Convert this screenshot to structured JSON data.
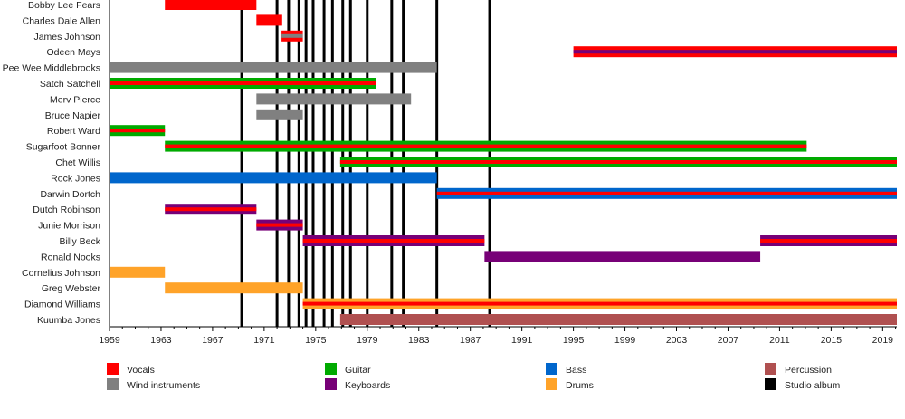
{
  "chart_data": {
    "type": "bar",
    "subtype": "timeline",
    "xlim": [
      1959,
      2020.1
    ],
    "x_tick_labels": [
      "1959",
      "1963",
      "1967",
      "1971",
      "1975",
      "1979",
      "1983",
      "1987",
      "1991",
      "1995",
      "1999",
      "2003",
      "2007",
      "2011",
      "2015",
      "2019"
    ],
    "colors": {
      "Vocals": "#ff0000",
      "Wind instruments": "#808080",
      "Guitar": "#00aa00",
      "Keyboards": "#770077",
      "Bass": "#0066cc",
      "Drums": "#ffa329",
      "Percussion": "#b05050",
      "Studio album": "#000000"
    },
    "legend": [
      "Vocals",
      "Wind instruments",
      "Guitar",
      "Keyboards",
      "Bass",
      "Drums",
      "Percussion",
      "Studio album"
    ],
    "legend_placement": "bottom",
    "members": [
      {
        "name": "Bobby Lee Fears",
        "spans": [
          {
            "start": 1963.3,
            "end": 1970.4,
            "role": "Vocals"
          }
        ]
      },
      {
        "name": "Charles Dale Allen",
        "spans": [
          {
            "start": 1970.4,
            "end": 1972.4,
            "role": "Vocals"
          }
        ]
      },
      {
        "name": "James Johnson",
        "spans": [
          {
            "start": 1972.35,
            "end": 1974.0,
            "role": "Vocals",
            "secondary": "Wind instruments"
          }
        ]
      },
      {
        "name": "Odeen Mays",
        "spans": [
          {
            "start": 1995.0,
            "end": 2020.1,
            "role": "Vocals",
            "secondary": "Keyboards"
          }
        ]
      },
      {
        "name": "Pee Wee Middlebrooks",
        "spans": [
          {
            "start": 1959.0,
            "end": 1984.4,
            "role": "Wind instruments"
          }
        ]
      },
      {
        "name": "Satch Satchell",
        "spans": [
          {
            "start": 1959.0,
            "end": 1979.7,
            "role": "Guitar",
            "secondary": "Vocals"
          }
        ]
      },
      {
        "name": "Merv Pierce",
        "spans": [
          {
            "start": 1970.4,
            "end": 1982.4,
            "role": "Wind instruments"
          }
        ]
      },
      {
        "name": "Bruce Napier",
        "spans": [
          {
            "start": 1970.4,
            "end": 1974.0,
            "role": "Wind instruments"
          }
        ]
      },
      {
        "name": "Robert Ward",
        "spans": [
          {
            "start": 1959.0,
            "end": 1963.3,
            "role": "Guitar",
            "secondary": "Vocals"
          }
        ]
      },
      {
        "name": "Sugarfoot Bonner",
        "spans": [
          {
            "start": 1963.3,
            "end": 2013.1,
            "role": "Guitar",
            "secondary": "Vocals"
          }
        ]
      },
      {
        "name": "Chet Willis",
        "spans": [
          {
            "start": 1976.9,
            "end": 2020.1,
            "role": "Guitar",
            "secondary": "Vocals"
          }
        ]
      },
      {
        "name": "Rock Jones",
        "spans": [
          {
            "start": 1959.0,
            "end": 1984.4,
            "role": "Bass"
          }
        ]
      },
      {
        "name": "Darwin Dortch",
        "spans": [
          {
            "start": 1984.4,
            "end": 2020.1,
            "role": "Bass",
            "secondary": "Vocals"
          }
        ]
      },
      {
        "name": "Dutch Robinson",
        "spans": [
          {
            "start": 1963.3,
            "end": 1970.4,
            "role": "Keyboards",
            "secondary": "Vocals"
          }
        ]
      },
      {
        "name": "Junie Morrison",
        "spans": [
          {
            "start": 1970.4,
            "end": 1974.0,
            "role": "Keyboards",
            "secondary": "Vocals"
          }
        ]
      },
      {
        "name": "Billy Beck",
        "spans": [
          {
            "start": 1974.0,
            "end": 1988.1,
            "role": "Keyboards",
            "secondary": "Vocals"
          },
          {
            "start": 2009.5,
            "end": 2020.1,
            "role": "Keyboards",
            "secondary": "Vocals"
          }
        ]
      },
      {
        "name": "Ronald Nooks",
        "spans": [
          {
            "start": 1988.1,
            "end": 2009.5,
            "role": "Keyboards"
          }
        ]
      },
      {
        "name": "Cornelius Johnson",
        "spans": [
          {
            "start": 1959.0,
            "end": 1963.3,
            "role": "Drums"
          }
        ]
      },
      {
        "name": "Greg Webster",
        "spans": [
          {
            "start": 1963.3,
            "end": 1974.0,
            "role": "Drums"
          }
        ]
      },
      {
        "name": "Diamond Williams",
        "spans": [
          {
            "start": 1974.0,
            "end": 2020.1,
            "role": "Drums",
            "secondary": "Vocals"
          }
        ]
      },
      {
        "name": "Kuumba Jones",
        "spans": [
          {
            "start": 1976.9,
            "end": 2020.1,
            "role": "Percussion"
          }
        ]
      }
    ],
    "studio_albums": [
      1969.26,
      1972.0,
      1972.9,
      1973.7,
      1974.25,
      1974.8,
      1975.65,
      1976.3,
      1977.1,
      1977.7,
      1979.0,
      1980.9,
      1981.8,
      1984.4,
      1988.5
    ]
  }
}
